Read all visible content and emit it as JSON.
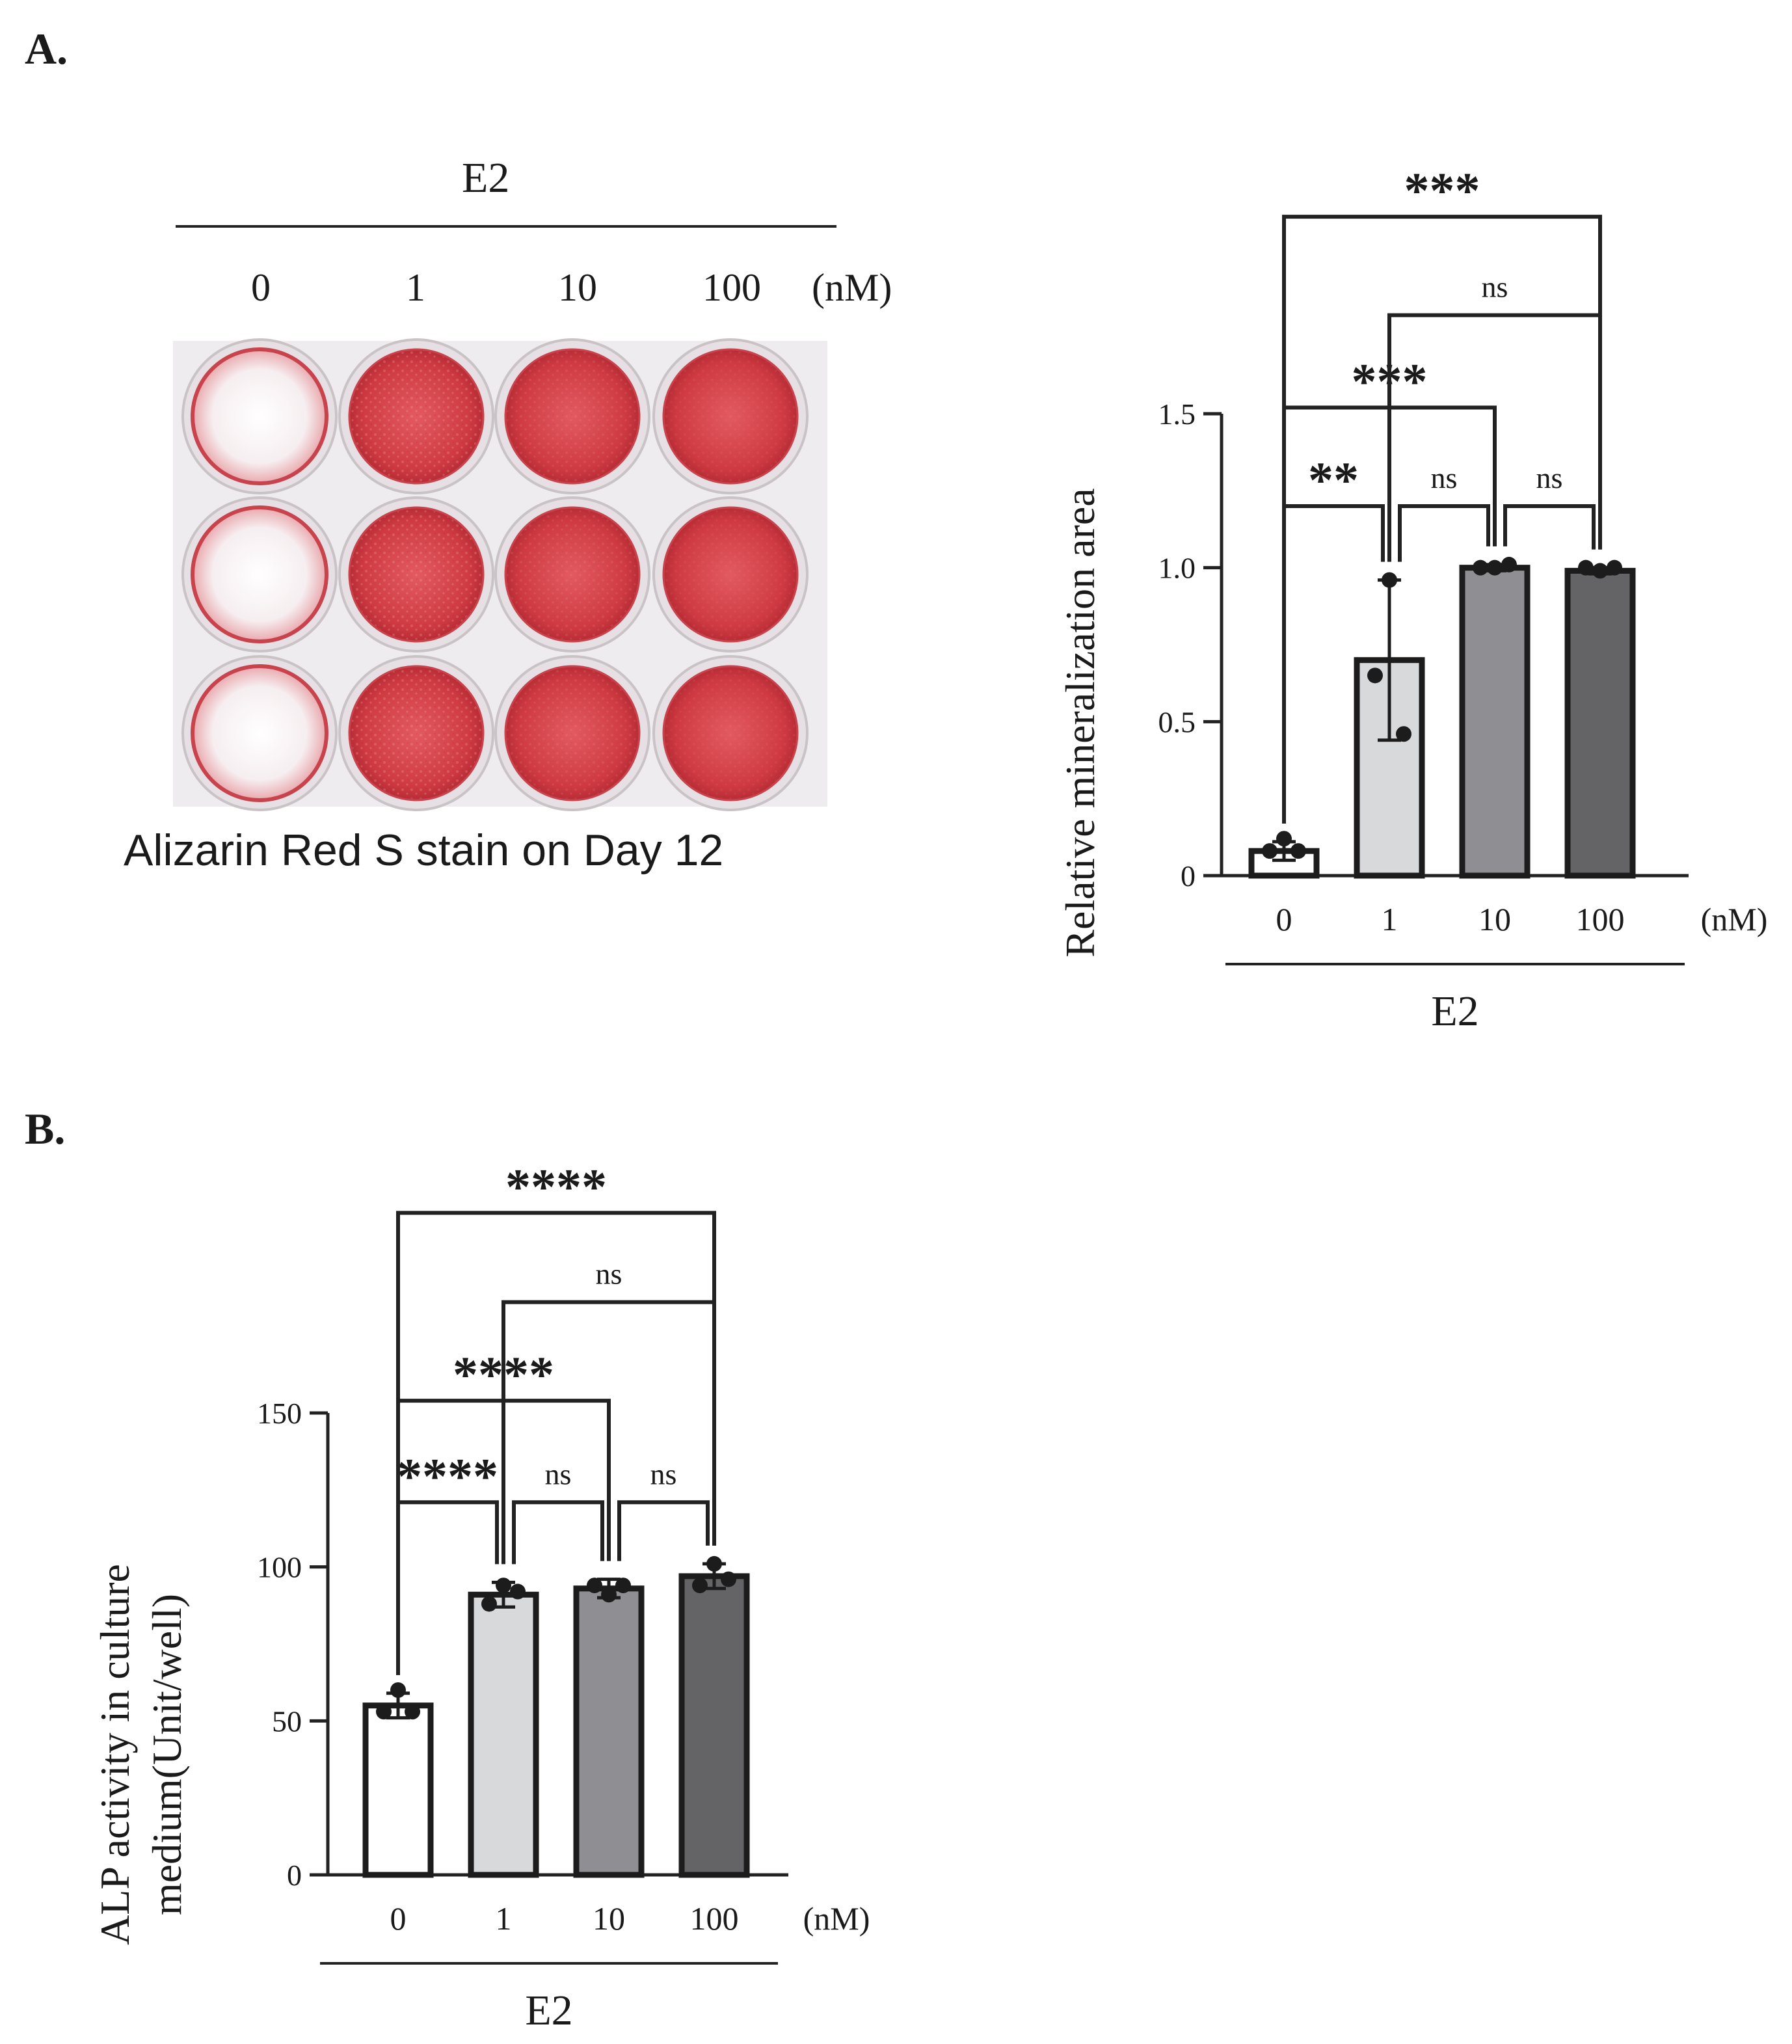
{
  "panels": {
    "A": "A.",
    "B": "B."
  },
  "plate": {
    "group_label": "E2",
    "concentrations": [
      "0",
      "1",
      "10",
      "100"
    ],
    "unit": "(nM)",
    "caption": "Alizarin Red S stain on Day 12",
    "stain_level": [
      0.05,
      0.6,
      0.85,
      0.95
    ],
    "colors": {
      "stain": "#d2373f",
      "well_rim": "#c9c3c6",
      "plate_bg": "#efecef"
    }
  },
  "chart_data": [
    {
      "type": "bar",
      "title": "",
      "ylabel": "Relative mineralization area",
      "xlabel": "E2",
      "unit_label": "(nM)",
      "categories": [
        "0",
        "1",
        "10",
        "100"
      ],
      "values": [
        0.08,
        0.7,
        1.0,
        0.99
      ],
      "errors": [
        0.03,
        0.26,
        0.01,
        0.01
      ],
      "points": [
        [
          0.12,
          0.08,
          0.08
        ],
        [
          0.96,
          0.65,
          0.46
        ],
        [
          1.0,
          1.0,
          1.01
        ],
        [
          0.99,
          1.0,
          1.0
        ]
      ],
      "ylim": [
        0,
        1.5
      ],
      "yticks": [
        0,
        0.5,
        1.0,
        1.5
      ],
      "ytick_labels": [
        "0",
        "0.5",
        "1.0",
        "1.5"
      ],
      "bar_colors": [
        "#ffffff",
        "#d8d9db",
        "#8f8f93",
        "#646466"
      ],
      "comparisons": [
        {
          "from": 0,
          "to": 1,
          "label": "**",
          "y": 1.2
        },
        {
          "from": 1,
          "to": 2,
          "label": "ns",
          "y": 1.2
        },
        {
          "from": 2,
          "to": 3,
          "label": "ns",
          "y": 1.2
        },
        {
          "from": 0,
          "to": 2,
          "label": "***",
          "y": 1.52
        },
        {
          "from": 1,
          "to": 3,
          "label": "ns",
          "y": 1.82
        },
        {
          "from": 0,
          "to": 3,
          "label": "***",
          "y": 2.14
        }
      ]
    },
    {
      "type": "bar",
      "title": "",
      "ylabel_line1": "ALP activity in culture",
      "ylabel_line2": "medium(Unit/well)",
      "xlabel": "E2",
      "unit_label": "(nM)",
      "categories": [
        "0",
        "1",
        "10",
        "100"
      ],
      "values": [
        55,
        91,
        93,
        97
      ],
      "errors": [
        4,
        4,
        3,
        4
      ],
      "points": [
        [
          60,
          53,
          53
        ],
        [
          94,
          88,
          92
        ],
        [
          91,
          94,
          94
        ],
        [
          101,
          94,
          96
        ]
      ],
      "ylim": [
        0,
        150
      ],
      "yticks": [
        0,
        50,
        100,
        150
      ],
      "ytick_labels": [
        "0",
        "50",
        "100",
        "150"
      ],
      "bar_colors": [
        "#ffffff",
        "#d8d9db",
        "#8f8f93",
        "#646466"
      ],
      "comparisons": [
        {
          "from": 0,
          "to": 1,
          "label": "****",
          "y": 121
        },
        {
          "from": 1,
          "to": 2,
          "label": "ns",
          "y": 121
        },
        {
          "from": 2,
          "to": 3,
          "label": "ns",
          "y": 121
        },
        {
          "from": 0,
          "to": 2,
          "label": "****",
          "y": 154
        },
        {
          "from": 1,
          "to": 3,
          "label": "ns",
          "y": 186
        },
        {
          "from": 0,
          "to": 3,
          "label": "****",
          "y": 215
        }
      ]
    }
  ]
}
